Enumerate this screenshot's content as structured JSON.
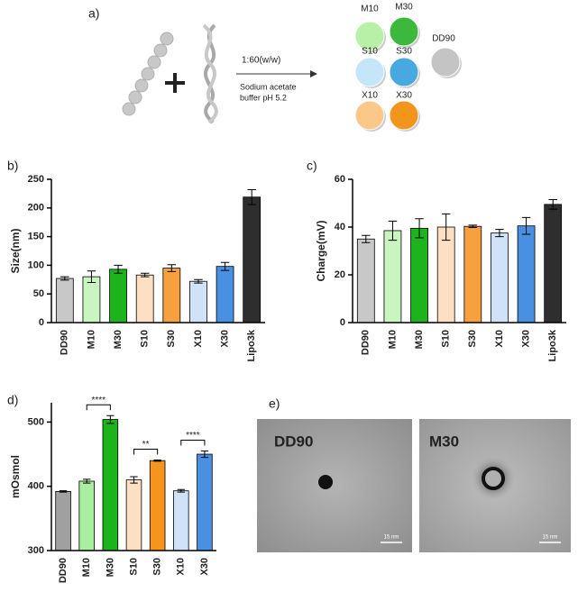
{
  "diagram": {
    "label": "a)",
    "ratio": "1:60(w/w)",
    "buffer": [
      "Sodium acetate",
      "buffer pH 5.2"
    ],
    "samples": [
      {
        "label": "M10",
        "color": "#b8f0a8"
      },
      {
        "label": "M30",
        "color": "#3cb83c"
      },
      {
        "label": "DD90",
        "color": "#c4c4c4"
      },
      {
        "label": "S10",
        "color": "#c4e6f8"
      },
      {
        "label": "S30",
        "color": "#48a8e0"
      },
      {
        "label": "X10",
        "color": "#fbc88a"
      },
      {
        "label": "X30",
        "color": "#f4941c"
      }
    ]
  },
  "chart_data": [
    {
      "type": "bar",
      "panel": "b)",
      "ylabel": "Size(nm)",
      "categories": [
        "DD90",
        "M10",
        "M30",
        "S10",
        "S30",
        "X10",
        "X30",
        "Lipo3k"
      ],
      "values": [
        77,
        80,
        93,
        83,
        95,
        72,
        98,
        219
      ],
      "errors": [
        3,
        10,
        7,
        3,
        6,
        3,
        7,
        13
      ],
      "colors": [
        "#c8c8c8",
        "#c8f5c0",
        "#1db31d",
        "#fde0c4",
        "#f7a040",
        "#cfe2f7",
        "#4a90e2",
        "#2e2e2e"
      ],
      "ylim": [
        0,
        250
      ],
      "yticks": [
        0,
        50,
        100,
        150,
        200,
        250
      ]
    },
    {
      "type": "bar",
      "panel": "c)",
      "ylabel": "Charge(mV)",
      "categories": [
        "DD90",
        "M10",
        "M30",
        "S10",
        "S30",
        "X10",
        "X30",
        "Lipo3k"
      ],
      "values": [
        35,
        38.5,
        39.5,
        40,
        40.3,
        37.5,
        40.5,
        49.5
      ],
      "errors": [
        1.5,
        4,
        4,
        5.5,
        0.5,
        1.5,
        3.5,
        2
      ],
      "colors": [
        "#c8c8c8",
        "#c8f5c0",
        "#1db31d",
        "#fde0c4",
        "#f7a040",
        "#cfe2f7",
        "#4a90e2",
        "#2e2e2e"
      ],
      "ylim": [
        0,
        60
      ],
      "yticks": [
        0,
        20,
        40,
        60
      ]
    },
    {
      "type": "bar",
      "panel": "d)",
      "ylabel": "mOsmol",
      "categories": [
        "DD90",
        "M10",
        "M30",
        "S10",
        "S30",
        "X10",
        "X30"
      ],
      "values": [
        392,
        408,
        504,
        410,
        440,
        393,
        450
      ],
      "errors": [
        1,
        3,
        6,
        5,
        1,
        2,
        5
      ],
      "colors": [
        "#a0a0a0",
        "#a8f0a0",
        "#1db31d",
        "#fde0c4",
        "#f7941d",
        "#cfe2f7",
        "#4a90e2"
      ],
      "ylim": [
        300,
        530
      ],
      "yticks": [
        300,
        400,
        500
      ],
      "annotations": [
        {
          "text": "****",
          "between": [
            "M10",
            "M30"
          ]
        },
        {
          "text": "**",
          "between": [
            "S10",
            "S30"
          ]
        },
        {
          "text": "****",
          "between": [
            "X10",
            "X30"
          ]
        }
      ]
    }
  ],
  "images": {
    "label": "e)",
    "panels": [
      {
        "title": "DD90",
        "scale": "15 nm"
      },
      {
        "title": "M30",
        "scale": "15 nm"
      }
    ]
  }
}
